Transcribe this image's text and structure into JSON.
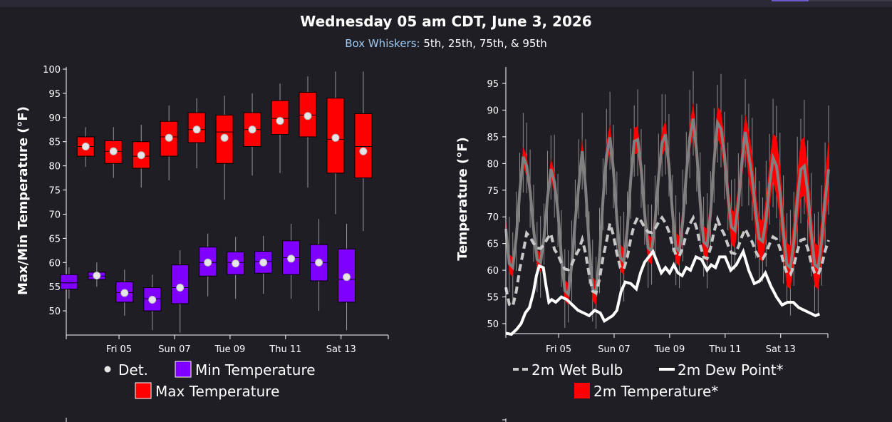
{
  "header": {
    "title": "Wednesday 05 am CDT, June 3, 2026",
    "subtitle_label": "Box Whiskers:",
    "subtitle_value": " 5th, 25th, 75th, & 95th"
  },
  "colors": {
    "background": "#1f1e24",
    "max_box": "#ff0000",
    "min_box": "#8000ff",
    "det_marker": "#e6e6e6",
    "temp_band": "#ff0000",
    "mean_line": "#808080",
    "wet_bulb": "#c8c8c8",
    "dew_point": "#ffffff"
  },
  "chart_data": [
    {
      "type": "box",
      "ylabel": "Max/Min Temperature (°F)",
      "ylim": [
        45,
        100
      ],
      "yticks": [
        50,
        55,
        60,
        65,
        70,
        75,
        80,
        85,
        90,
        95,
        100
      ],
      "x_range": [
        0,
        11.6
      ],
      "xticks": [
        {
          "x": 1.9,
          "label": "Fri 05"
        },
        {
          "x": 3.9,
          "label": "Sun 07"
        },
        {
          "x": 5.9,
          "label": "Tue 09"
        },
        {
          "x": 7.9,
          "label": "Thu 11"
        },
        {
          "x": 9.9,
          "label": "Sat 13"
        }
      ],
      "legend": [
        {
          "key": "det",
          "label": "Det."
        },
        {
          "key": "min",
          "label": "Min Temperature"
        },
        {
          "key": "max",
          "label": "Max Temperature"
        }
      ],
      "max_series": {
        "name": "Max Temperature",
        "x": [
          0.7,
          1.7,
          2.7,
          3.7,
          4.7,
          5.7,
          6.7,
          7.7,
          8.7,
          9.7,
          10.7
        ],
        "p5": [
          79.8,
          77.5,
          75.5,
          77.0,
          79.5,
          73.0,
          78.0,
          78.5,
          75.5,
          70.0,
          66.5
        ],
        "p25": [
          82.0,
          80.5,
          79.5,
          82.0,
          84.8,
          80.5,
          84.0,
          86.5,
          86.0,
          78.5,
          77.5
        ],
        "median": [
          84.0,
          83.0,
          82.0,
          86.0,
          87.5,
          87.0,
          87.5,
          89.8,
          90.5,
          85.5,
          84.0
        ],
        "p75": [
          86.0,
          85.2,
          85.0,
          89.2,
          91.0,
          90.5,
          91.0,
          93.5,
          95.2,
          94.0,
          90.8
        ],
        "p95": [
          88.0,
          88.0,
          88.5,
          92.5,
          94.0,
          94.5,
          95.0,
          97.0,
          98.5,
          99.5,
          99.5
        ],
        "det": [
          84.0,
          83.0,
          82.2,
          85.8,
          87.5,
          85.8,
          87.5,
          89.3,
          90.3,
          85.8,
          83.0
        ]
      },
      "min_series": {
        "name": "Min Temperature",
        "x": [
          0.1,
          1.1,
          2.1,
          3.1,
          4.1,
          5.1,
          6.1,
          7.1,
          8.1,
          9.1,
          10.1
        ],
        "p5": [
          52.5,
          55.0,
          49.0,
          46.0,
          45.5,
          53.0,
          52.5,
          53.5,
          52.5,
          50.0,
          46.0
        ],
        "p25": [
          54.5,
          56.5,
          51.8,
          50.0,
          51.5,
          57.2,
          57.5,
          57.8,
          57.5,
          56.2,
          51.8
        ],
        "median": [
          55.8,
          57.2,
          53.8,
          52.5,
          54.8,
          60.0,
          60.0,
          60.2,
          61.0,
          60.0,
          56.5
        ],
        "p75": [
          57.5,
          58.0,
          56.0,
          54.8,
          59.5,
          63.2,
          62.2,
          62.3,
          64.5,
          63.7,
          62.8
        ],
        "p95": [
          59.0,
          60.0,
          58.5,
          57.5,
          62.5,
          66.0,
          65.3,
          65.5,
          68.0,
          69.0,
          68.0
        ],
        "det": [
          null,
          57.3,
          53.7,
          52.3,
          54.8,
          60.0,
          59.8,
          60.0,
          60.8,
          60.0,
          57.0
        ]
      }
    },
    {
      "type": "line",
      "ylabel": "Temperature (°F)",
      "ylim": [
        48,
        98
      ],
      "yticks": [
        50,
        55,
        60,
        65,
        70,
        75,
        80,
        85,
        90,
        95
      ],
      "x_range": [
        0,
        11.6
      ],
      "xticks": [
        {
          "x": 1.9,
          "label": "Fri 05"
        },
        {
          "x": 3.9,
          "label": "Sun 07"
        },
        {
          "x": 5.9,
          "label": "Tue 09"
        },
        {
          "x": 7.9,
          "label": "Thu 11"
        },
        {
          "x": 9.9,
          "label": "Sat 13"
        }
      ],
      "legend": [
        {
          "key": "wetbulb",
          "label": "2m Wet Bulb"
        },
        {
          "key": "dewpoint",
          "label": "2m Dew Point*"
        },
        {
          "key": "temp",
          "label": "2m Temperature*"
        }
      ],
      "daily_max": [
        82.5,
        80.0,
        77.0,
        83.0,
        85.5,
        85.0,
        86.0,
        89.0,
        87.0,
        82.0,
        80.0
      ],
      "daily_min": [
        60.0,
        61.0,
        55.0,
        55.0,
        61.0,
        63.0,
        63.0,
        64.0,
        67.0,
        65.0,
        60.0
      ],
      "band_half_max": [
        1.8,
        2.0,
        2.0,
        2.3,
        2.5,
        2.5,
        2.5,
        3.0,
        3.3,
        4.5,
        5.5
      ],
      "band_half_min": [
        1.8,
        1.8,
        2.0,
        2.2,
        2.5,
        2.5,
        2.8,
        3.0,
        3.3,
        3.8,
        4.0
      ],
      "wetbulb_min": [
        53.0,
        64.0,
        60.0,
        55.5,
        60.0,
        67.0,
        62.5,
        62.0,
        63.0,
        62.0,
        59.0
      ],
      "wetbulb_max": [
        64.0,
        67.0,
        64.0,
        66.0,
        69.0,
        70.0,
        69.0,
        70.0,
        68.0,
        66.5,
        66.0
      ],
      "dewpoint": [
        [
          0.0,
          48.2
        ],
        [
          0.2,
          48.0
        ],
        [
          0.4,
          49.0
        ],
        [
          0.55,
          50.0
        ],
        [
          0.7,
          52.0
        ],
        [
          0.85,
          53.0
        ],
        [
          1.0,
          56.0
        ],
        [
          1.1,
          59.0
        ],
        [
          1.2,
          60.8
        ],
        [
          1.35,
          60.5
        ],
        [
          1.45,
          57.0
        ],
        [
          1.55,
          54.0
        ],
        [
          1.65,
          54.5
        ],
        [
          1.8,
          54.0
        ],
        [
          2.0,
          55.0
        ],
        [
          2.2,
          54.5
        ],
        [
          2.4,
          53.5
        ],
        [
          2.6,
          52.5
        ],
        [
          2.8,
          52.0
        ],
        [
          3.0,
          51.5
        ],
        [
          3.2,
          52.5
        ],
        [
          3.4,
          52.0
        ],
        [
          3.55,
          50.5
        ],
        [
          3.7,
          51.0
        ],
        [
          3.85,
          51.5
        ],
        [
          4.0,
          52.5
        ],
        [
          4.15,
          56.0
        ],
        [
          4.3,
          57.8
        ],
        [
          4.5,
          57.5
        ],
        [
          4.7,
          56.5
        ],
        [
          4.85,
          59.5
        ],
        [
          5.0,
          61.5
        ],
        [
          5.15,
          62.5
        ],
        [
          5.3,
          63.5
        ],
        [
          5.45,
          61.5
        ],
        [
          5.6,
          59.5
        ],
        [
          5.75,
          60.5
        ],
        [
          5.9,
          59.5
        ],
        [
          6.05,
          61.0
        ],
        [
          6.2,
          59.5
        ],
        [
          6.35,
          59.0
        ],
        [
          6.5,
          60.5
        ],
        [
          6.65,
          60.0
        ],
        [
          6.85,
          62.5
        ],
        [
          7.05,
          62.0
        ],
        [
          7.25,
          60.0
        ],
        [
          7.4,
          61.0
        ],
        [
          7.55,
          60.5
        ],
        [
          7.7,
          62.5
        ],
        [
          7.9,
          62.5
        ],
        [
          8.1,
          60.0
        ],
        [
          8.3,
          61.0
        ],
        [
          8.55,
          63.5
        ],
        [
          8.75,
          60.0
        ],
        [
          8.95,
          57.5
        ],
        [
          9.15,
          58.0
        ],
        [
          9.35,
          59.5
        ],
        [
          9.55,
          57.0
        ],
        [
          9.75,
          55.0
        ],
        [
          9.95,
          53.5
        ],
        [
          10.15,
          54.0
        ],
        [
          10.35,
          54.0
        ],
        [
          10.55,
          53.0
        ],
        [
          10.75,
          52.5
        ],
        [
          10.95,
          52.0
        ],
        [
          11.15,
          51.5
        ],
        [
          11.3,
          51.8
        ]
      ]
    }
  ]
}
